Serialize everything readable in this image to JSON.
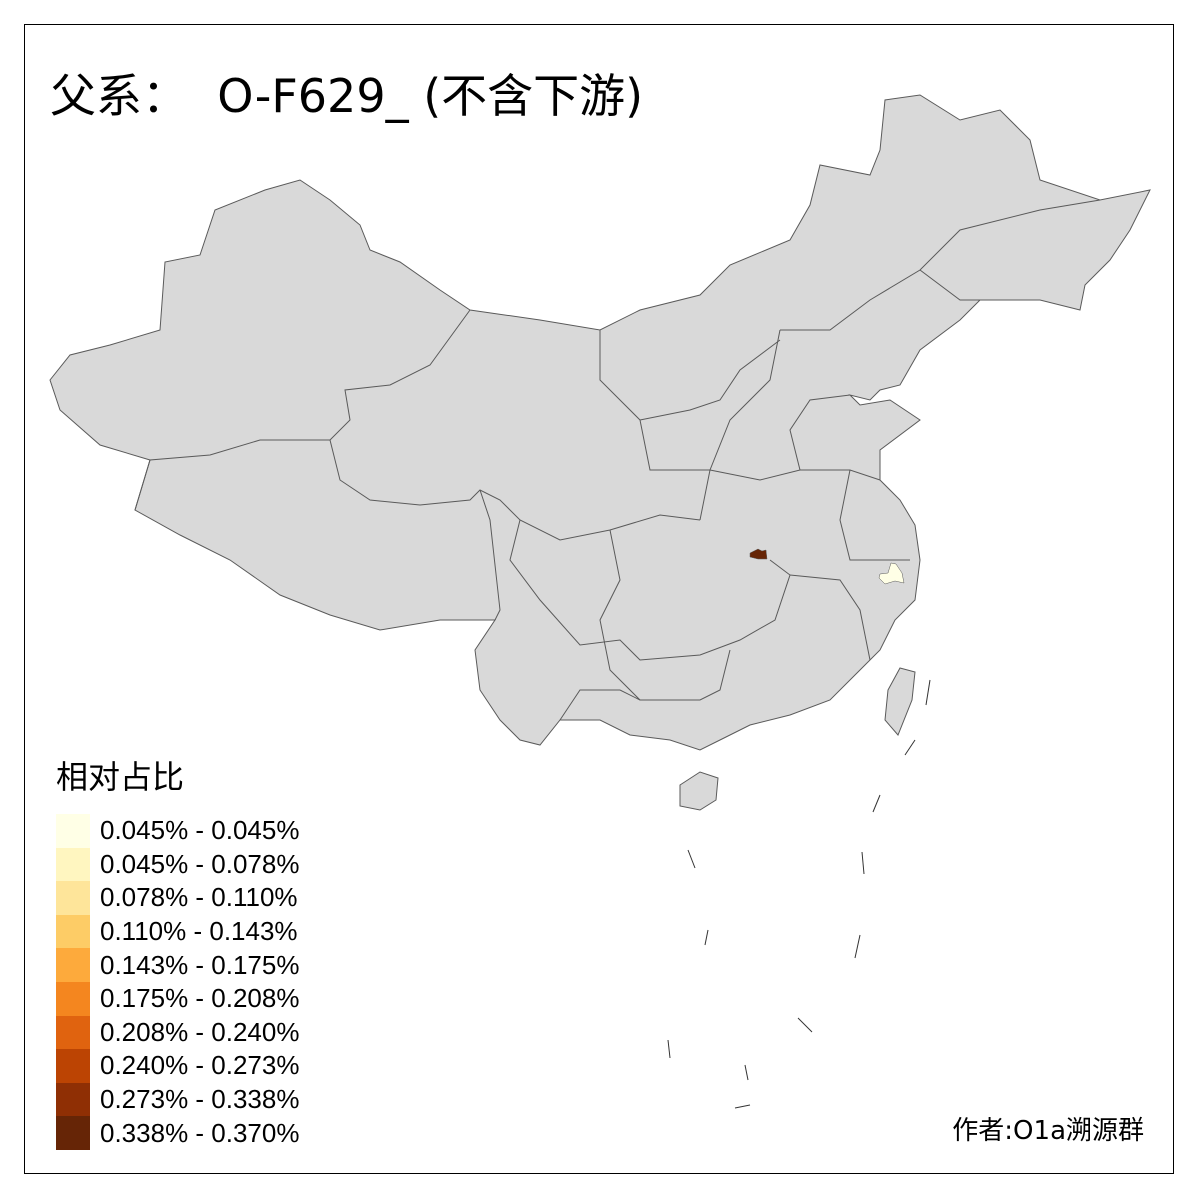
{
  "title": "父系：  O-F629_ (不含下游)",
  "legend": {
    "title": "相对占比",
    "items": [
      {
        "label": "0.045% - 0.045%",
        "color": "#FFFFE6"
      },
      {
        "label": "0.045% - 0.078%",
        "color": "#FFF6C0"
      },
      {
        "label": "0.078% - 0.110%",
        "color": "#FEE59A"
      },
      {
        "label": "0.110% - 0.143%",
        "color": "#FDCC66"
      },
      {
        "label": "0.143% - 0.175%",
        "color": "#FDAA3C"
      },
      {
        "label": "0.175% - 0.208%",
        "color": "#F4861F"
      },
      {
        "label": "0.208% - 0.240%",
        "color": "#E0630F"
      },
      {
        "label": "0.240% - 0.273%",
        "color": "#BC4403"
      },
      {
        "label": "0.273% - 0.338%",
        "color": "#8F2F04"
      },
      {
        "label": "0.338% - 0.370%",
        "color": "#662506"
      }
    ]
  },
  "map": {
    "base_color": "#D9D9D9",
    "border_color": "#5A5A5A",
    "highlight_high": "#662506",
    "highlight_low": "#FFFFE6"
  },
  "author": "作者:O1a溯源群"
}
